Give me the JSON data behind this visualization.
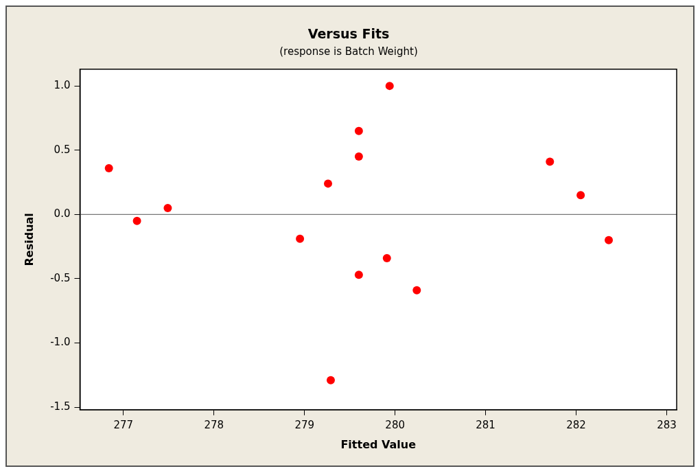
{
  "chart_data": {
    "type": "scatter",
    "title": "Versus Fits",
    "subtitle": "(response is Batch Weight)",
    "xlabel": "Fitted Value",
    "ylabel": "Residual",
    "x": [
      276.84,
      277.15,
      277.49,
      278.95,
      279.26,
      279.29,
      279.6,
      279.6,
      279.6,
      279.94,
      279.91,
      280.24,
      281.71,
      282.05,
      282.36
    ],
    "values": [
      0.36,
      -0.05,
      0.05,
      -0.19,
      0.24,
      -1.29,
      0.65,
      0.45,
      -0.47,
      1.0,
      -0.34,
      -0.59,
      0.41,
      0.15,
      -0.2
    ],
    "color": "#ff0000",
    "marker": "circle",
    "xlim": [
      276.52,
      283.11
    ],
    "xticks": [
      277,
      278,
      279,
      280,
      281,
      282,
      283
    ],
    "ylim": [
      -1.52,
      1.13
    ],
    "yticks": [
      {
        "value": -1.5,
        "label": "-1.5"
      },
      {
        "value": -1,
        "label": "-1.0"
      },
      {
        "value": -0.5,
        "label": "-0.5"
      },
      {
        "value": 0,
        "label": "0.0"
      },
      {
        "value": 0.5,
        "label": "0.5"
      },
      {
        "value": 1,
        "label": "1.0"
      }
    ],
    "ref_lines": [
      {
        "axis": "y",
        "value": 0,
        "color": "#555555"
      }
    ],
    "grid": false,
    "legend": false
  }
}
